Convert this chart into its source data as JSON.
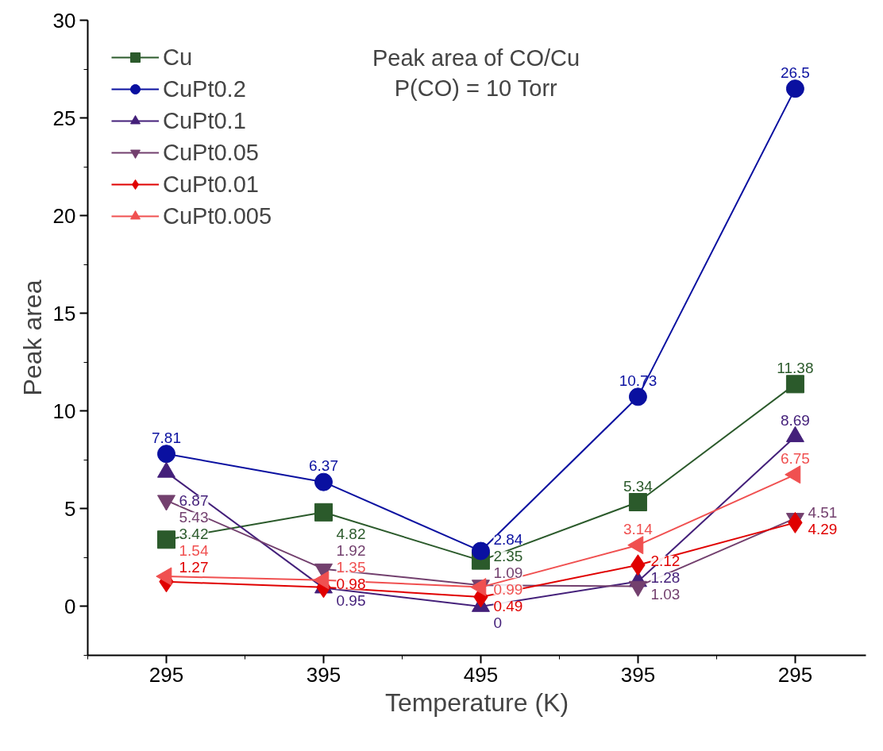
{
  "chart_data": {
    "type": "line",
    "title": "Peak area of CO/Cu\nP(CO) = 10 Torr",
    "xlabel": "Temperature (K)",
    "ylabel": "Peak area",
    "categories": [
      "295",
      "395",
      "495",
      "395",
      "295"
    ],
    "series": [
      {
        "name": "Cu",
        "color": "#2b5a2b",
        "marker": "square",
        "values": [
          3.42,
          4.82,
          2.35,
          5.34,
          11.38
        ]
      },
      {
        "name": "CuPt0.2",
        "color": "#0a10a0",
        "marker": "circle",
        "values": [
          7.81,
          6.37,
          2.84,
          10.73,
          26.5
        ]
      },
      {
        "name": "CuPt0.1",
        "color": "#44207a",
        "marker": "triangle",
        "values": [
          6.87,
          0.95,
          0,
          1.28,
          8.69
        ]
      },
      {
        "name": "CuPt0.05",
        "color": "#73406e",
        "marker": "triangle_down",
        "values": [
          5.43,
          1.92,
          1.09,
          1.03,
          4.51
        ]
      },
      {
        "name": "CuPt0.01",
        "color": "#e00000",
        "marker": "diamond",
        "values": [
          1.27,
          0.98,
          0.49,
          2.12,
          4.29
        ]
      },
      {
        "name": "CuPt0.005",
        "color": "#f05050",
        "marker": "triangle_left",
        "values": [
          1.54,
          1.35,
          0.99,
          3.14,
          6.75
        ]
      }
    ],
    "ylim": [
      -2.5,
      30
    ],
    "yticks": [
      0,
      5,
      10,
      15,
      20,
      25,
      30
    ],
    "data_labels": true,
    "legend": "top left",
    "grid": false
  }
}
